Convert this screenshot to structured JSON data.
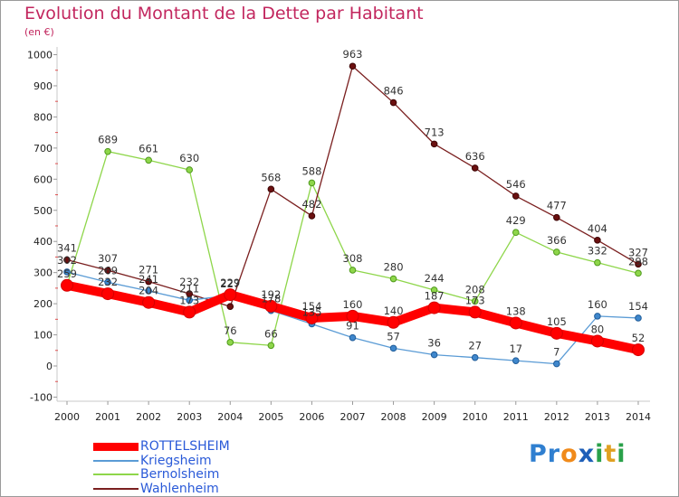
{
  "title": "Evolution du Montant de la Dette par Habitant",
  "subtitle": "(en €)",
  "logo": "Proxiti",
  "chart_data": {
    "type": "line",
    "title": "Evolution du Montant de la Dette par Habitant",
    "subtitle": "(en €)",
    "x": [
      "2000",
      "2001",
      "2002",
      "2003",
      "2004",
      "2005",
      "2006",
      "2007",
      "2008",
      "2009",
      "2010",
      "2011",
      "2012",
      "2013",
      "2014"
    ],
    "y_ticks": [
      "-100",
      "0",
      "100",
      "200",
      "300",
      "400",
      "500",
      "600",
      "700",
      "800",
      "900",
      "1000"
    ],
    "ylim": [
      -100,
      1000
    ],
    "grid": false,
    "legend_position": "bottom-left",
    "series": [
      {
        "name": "ROTTELSHEIM",
        "color": "#ff0000",
        "values": [
          259,
          232,
          204,
          173,
          229,
          192,
          154,
          160,
          140,
          187,
          173,
          138,
          105,
          80,
          52
        ]
      },
      {
        "name": "Kriegsheim",
        "color": "#5a9bd5",
        "values": [
          302,
          269,
          241,
          211,
          227,
          178,
          135,
          91,
          57,
          36,
          27,
          17,
          7,
          160,
          154
        ]
      },
      {
        "name": "Bernolsheim",
        "color": "#8ed64a",
        "values": [
          259,
          689,
          661,
          630,
          76,
          66,
          588,
          308,
          280,
          244,
          208,
          429,
          366,
          332,
          298
        ]
      },
      {
        "name": "Wahlenheim",
        "color": "#7a1f1f",
        "values": [
          341,
          307,
          271,
          232,
          191,
          568,
          482,
          963,
          846,
          713,
          636,
          546,
          477,
          404,
          327
        ]
      }
    ],
    "labels": [
      {
        "text": "259",
        "x": "2000",
        "y": 259,
        "series": 0
      },
      {
        "text": "232",
        "x": "2001",
        "y": 232,
        "series": 0
      },
      {
        "text": "204",
        "x": "2002",
        "y": 204,
        "series": 0
      },
      {
        "text": "173",
        "x": "2003",
        "y": 173,
        "series": 0
      },
      {
        "text": "229",
        "x": "2004",
        "y": 229,
        "series": 0
      },
      {
        "text": "192",
        "x": "2005",
        "y": 192,
        "series": 0
      },
      {
        "text": "154",
        "x": "2006",
        "y": 154,
        "series": 0
      },
      {
        "text": "160",
        "x": "2007",
        "y": 160,
        "series": 0
      },
      {
        "text": "140",
        "x": "2008",
        "y": 140,
        "series": 0
      },
      {
        "text": "187",
        "x": "2009",
        "y": 187,
        "series": 0
      },
      {
        "text": "173",
        "x": "2010",
        "y": 173,
        "series": 0
      },
      {
        "text": "138",
        "x": "2011",
        "y": 138,
        "series": 0
      },
      {
        "text": "105",
        "x": "2012",
        "y": 105,
        "series": 0
      },
      {
        "text": "80",
        "x": "2013",
        "y": 80,
        "series": 0
      },
      {
        "text": "52",
        "x": "2014",
        "y": 52,
        "series": 0
      },
      {
        "text": "302",
        "x": "2000",
        "y": 302,
        "series": 1
      },
      {
        "text": "269",
        "x": "2001",
        "y": 269,
        "series": 1
      },
      {
        "text": "241",
        "x": "2002",
        "y": 241,
        "series": 1
      },
      {
        "text": "211",
        "x": "2003",
        "y": 211,
        "series": 1
      },
      {
        "text": "227",
        "x": "2004",
        "y": 227,
        "series": 1
      },
      {
        "text": "178",
        "x": "2005",
        "y": 178,
        "series": 1
      },
      {
        "text": "135",
        "x": "2006",
        "y": 135,
        "series": 1
      },
      {
        "text": "91",
        "x": "2007",
        "y": 91,
        "series": 1
      },
      {
        "text": "57",
        "x": "2008",
        "y": 57,
        "series": 1
      },
      {
        "text": "36",
        "x": "2009",
        "y": 36,
        "series": 1
      },
      {
        "text": "27",
        "x": "2010",
        "y": 27,
        "series": 1
      },
      {
        "text": "17",
        "x": "2011",
        "y": 17,
        "series": 1
      },
      {
        "text": "7",
        "x": "2012",
        "y": 7,
        "series": 1
      },
      {
        "text": "160",
        "x": "2013",
        "y": 160,
        "series": 1
      },
      {
        "text": "154",
        "x": "2014",
        "y": 154,
        "series": 1
      },
      {
        "text": "689",
        "x": "2001",
        "y": 689,
        "series": 2
      },
      {
        "text": "661",
        "x": "2002",
        "y": 661,
        "series": 2
      },
      {
        "text": "630",
        "x": "2003",
        "y": 630,
        "series": 2
      },
      {
        "text": "76",
        "x": "2004",
        "y": 76,
        "series": 2
      },
      {
        "text": "66",
        "x": "2005",
        "y": 66,
        "series": 2
      },
      {
        "text": "588",
        "x": "2006",
        "y": 588,
        "series": 2
      },
      {
        "text": "308",
        "x": "2007",
        "y": 308,
        "series": 2
      },
      {
        "text": "280",
        "x": "2008",
        "y": 280,
        "series": 2
      },
      {
        "text": "244",
        "x": "2009",
        "y": 244,
        "series": 2
      },
      {
        "text": "208",
        "x": "2010",
        "y": 208,
        "series": 2
      },
      {
        "text": "429",
        "x": "2011",
        "y": 429,
        "series": 2
      },
      {
        "text": "366",
        "x": "2012",
        "y": 366,
        "series": 2
      },
      {
        "text": "332",
        "x": "2013",
        "y": 332,
        "series": 2
      },
      {
        "text": "298",
        "x": "2014",
        "y": 298,
        "series": 2
      },
      {
        "text": "341",
        "x": "2000",
        "y": 341,
        "series": 3
      },
      {
        "text": "307",
        "x": "2001",
        "y": 307,
        "series": 3
      },
      {
        "text": "271",
        "x": "2002",
        "y": 271,
        "series": 3
      },
      {
        "text": "232",
        "x": "2003",
        "y": 232,
        "series": 3
      },
      {
        "text": "568",
        "x": "2005",
        "y": 568,
        "series": 3
      },
      {
        "text": "482",
        "x": "2006",
        "y": 482,
        "series": 3
      },
      {
        "text": "963",
        "x": "2007",
        "y": 963,
        "series": 3
      },
      {
        "text": "846",
        "x": "2008",
        "y": 846,
        "series": 3
      },
      {
        "text": "713",
        "x": "2009",
        "y": 713,
        "series": 3
      },
      {
        "text": "636",
        "x": "2010",
        "y": 636,
        "series": 3
      },
      {
        "text": "546",
        "x": "2011",
        "y": 546,
        "series": 3
      },
      {
        "text": "477",
        "x": "2012",
        "y": 477,
        "series": 3
      },
      {
        "text": "404",
        "x": "2013",
        "y": 404,
        "series": 3
      },
      {
        "text": "327",
        "x": "2014",
        "y": 327,
        "series": 3
      }
    ]
  }
}
